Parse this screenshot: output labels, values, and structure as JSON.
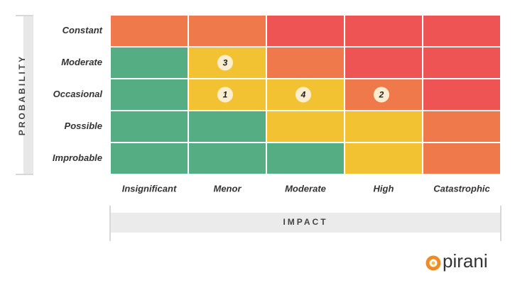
{
  "y_axis_title": "PROBABILITY",
  "x_axis_title": "IMPACT",
  "columns": [
    "Insignificant",
    "Menor",
    "Moderate",
    "High",
    "Catastrophic"
  ],
  "rows": [
    {
      "label": "Constant",
      "cells": [
        {
          "color": "#f0794b"
        },
        {
          "color": "#f0794b"
        },
        {
          "color": "#ef5454"
        },
        {
          "color": "#ef5454"
        },
        {
          "color": "#ef5454"
        }
      ]
    },
    {
      "label": "Moderate",
      "cells": [
        {
          "color": "#55ad84"
        },
        {
          "color": "#f3c233",
          "marker": "3"
        },
        {
          "color": "#f0794b"
        },
        {
          "color": "#ef5454"
        },
        {
          "color": "#ef5454"
        }
      ]
    },
    {
      "label": "Occasional",
      "cells": [
        {
          "color": "#55ad84"
        },
        {
          "color": "#f3c233",
          "marker": "1"
        },
        {
          "color": "#f3c233",
          "marker": "4"
        },
        {
          "color": "#f0794b",
          "marker": "2"
        },
        {
          "color": "#ef5454"
        }
      ]
    },
    {
      "label": "Possible",
      "cells": [
        {
          "color": "#55ad84"
        },
        {
          "color": "#55ad84"
        },
        {
          "color": "#f3c233"
        },
        {
          "color": "#f3c233"
        },
        {
          "color": "#f0794b"
        }
      ]
    },
    {
      "label": "Improbable",
      "cells": [
        {
          "color": "#55ad84"
        },
        {
          "color": "#55ad84"
        },
        {
          "color": "#55ad84"
        },
        {
          "color": "#f3c233"
        },
        {
          "color": "#f0794b"
        }
      ]
    }
  ],
  "logo": {
    "text": "pirani"
  }
}
